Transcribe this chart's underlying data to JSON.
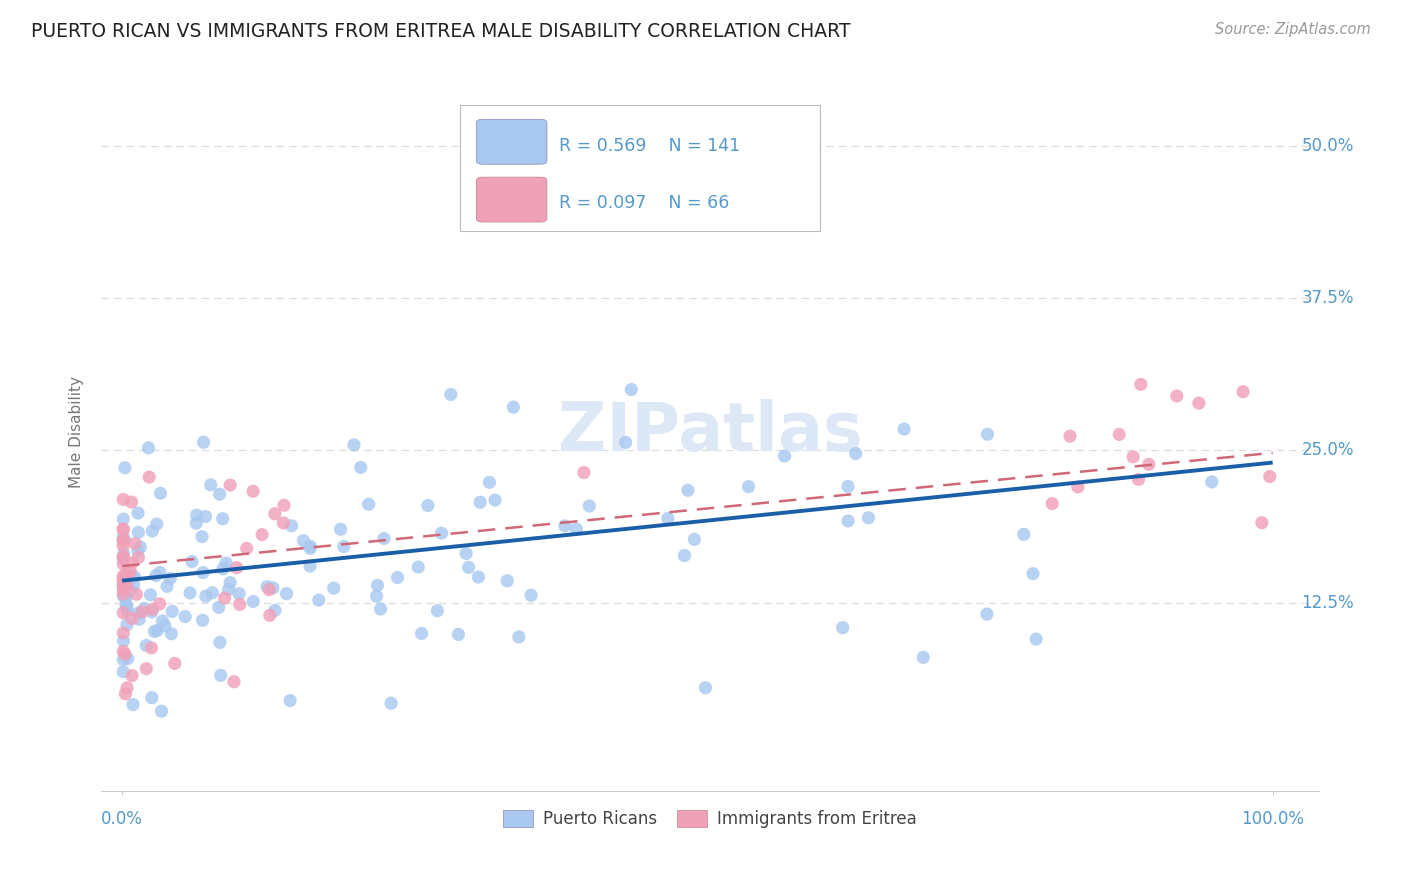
{
  "title": "PUERTO RICAN VS IMMIGRANTS FROM ERITREA MALE DISABILITY CORRELATION CHART",
  "source": "Source: ZipAtlas.com",
  "ylabel": "Male Disability",
  "legend1_R": "0.569",
  "legend1_N": "141",
  "legend2_R": "0.097",
  "legend2_N": "66",
  "blue_color": "#A8C8F0",
  "pink_color": "#F0A0B8",
  "blue_line_color": "#1B5EA8",
  "pink_line_color": "#D06878",
  "axis_tick_color": "#5599CC",
  "ylabel_color": "#777777",
  "title_color": "#222222",
  "source_color": "#999999",
  "grid_color": "#DDDDDD",
  "watermark_color": "#DCE8F5",
  "blue_line_start_y": 0.143,
  "blue_line_end_y": 0.24,
  "pink_line_start_y": 0.155,
  "pink_line_end_y": 0.248,
  "ylim_min": -0.03,
  "ylim_max": 0.56,
  "xlim_min": -0.018,
  "xlim_max": 1.04,
  "ytick_vals": [
    0.0,
    0.125,
    0.25,
    0.375,
    0.5
  ],
  "ytick_labels_right": [
    "",
    "12.5%",
    "25.0%",
    "37.5%",
    "50.0%"
  ],
  "seed_pr": 42,
  "seed_er": 99,
  "n_pr": 141,
  "n_er": 66
}
